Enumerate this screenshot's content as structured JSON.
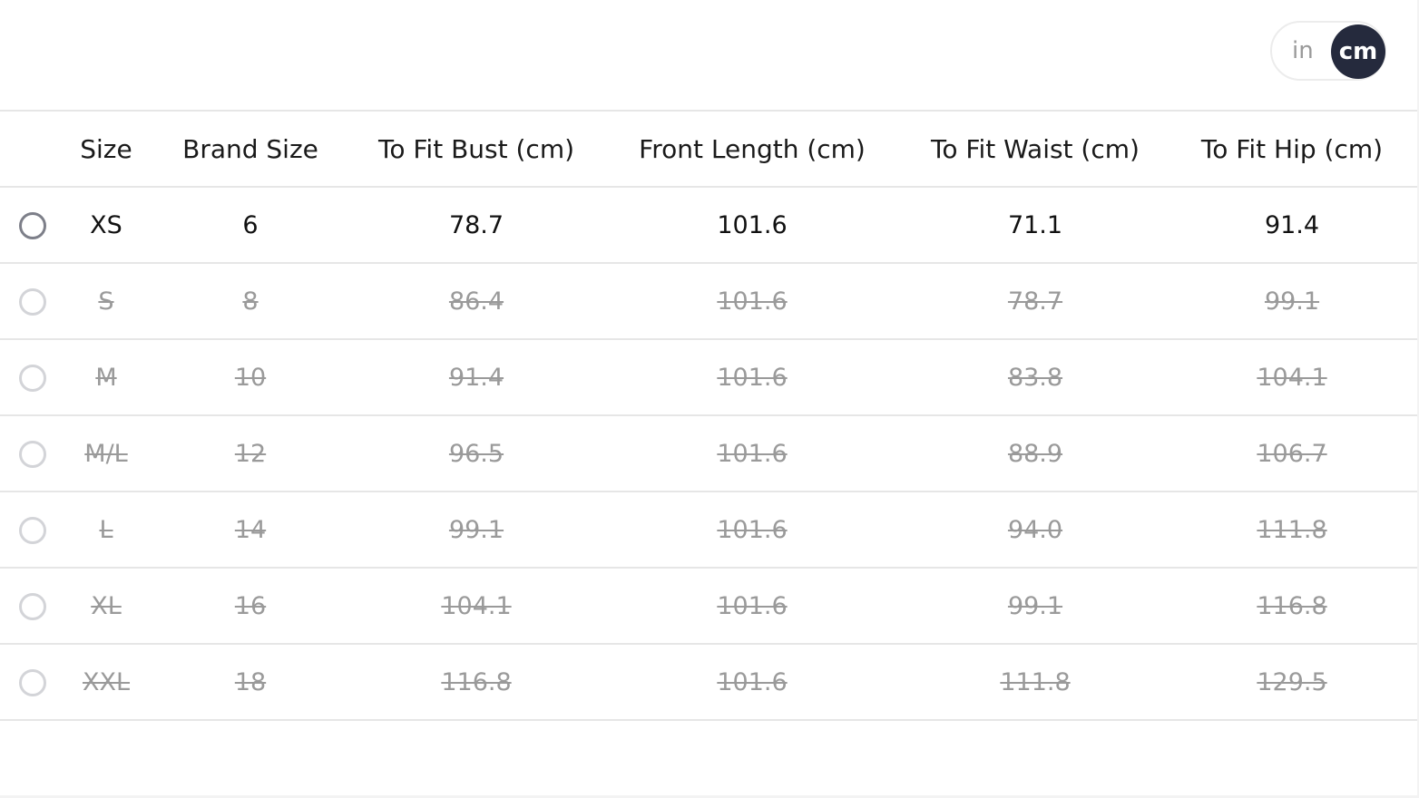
{
  "unit_toggle": {
    "options": [
      "in",
      "cm"
    ],
    "selected": "cm"
  },
  "colors": {
    "active_unit_bg": "#252a3d",
    "disabled_text": "#9a9a9a"
  },
  "headers": [
    "Size",
    "Brand Size",
    "To Fit Bust (cm)",
    "Front Length (cm)",
    "To Fit Waist (cm)",
    "To Fit Hip (cm)"
  ],
  "rows": [
    {
      "available": true,
      "cells": [
        "XS",
        "6",
        "78.7",
        "101.6",
        "71.1",
        "91.4"
      ]
    },
    {
      "available": false,
      "cells": [
        "S",
        "8",
        "86.4",
        "101.6",
        "78.7",
        "99.1"
      ]
    },
    {
      "available": false,
      "cells": [
        "M",
        "10",
        "91.4",
        "101.6",
        "83.8",
        "104.1"
      ]
    },
    {
      "available": false,
      "cells": [
        "M/L",
        "12",
        "96.5",
        "101.6",
        "88.9",
        "106.7"
      ]
    },
    {
      "available": false,
      "cells": [
        "L",
        "14",
        "99.1",
        "101.6",
        "94.0",
        "111.8"
      ]
    },
    {
      "available": false,
      "cells": [
        "XL",
        "16",
        "104.1",
        "101.6",
        "99.1",
        "116.8"
      ]
    },
    {
      "available": false,
      "cells": [
        "XXL",
        "18",
        "116.8",
        "101.6",
        "111.8",
        "129.5"
      ]
    }
  ]
}
